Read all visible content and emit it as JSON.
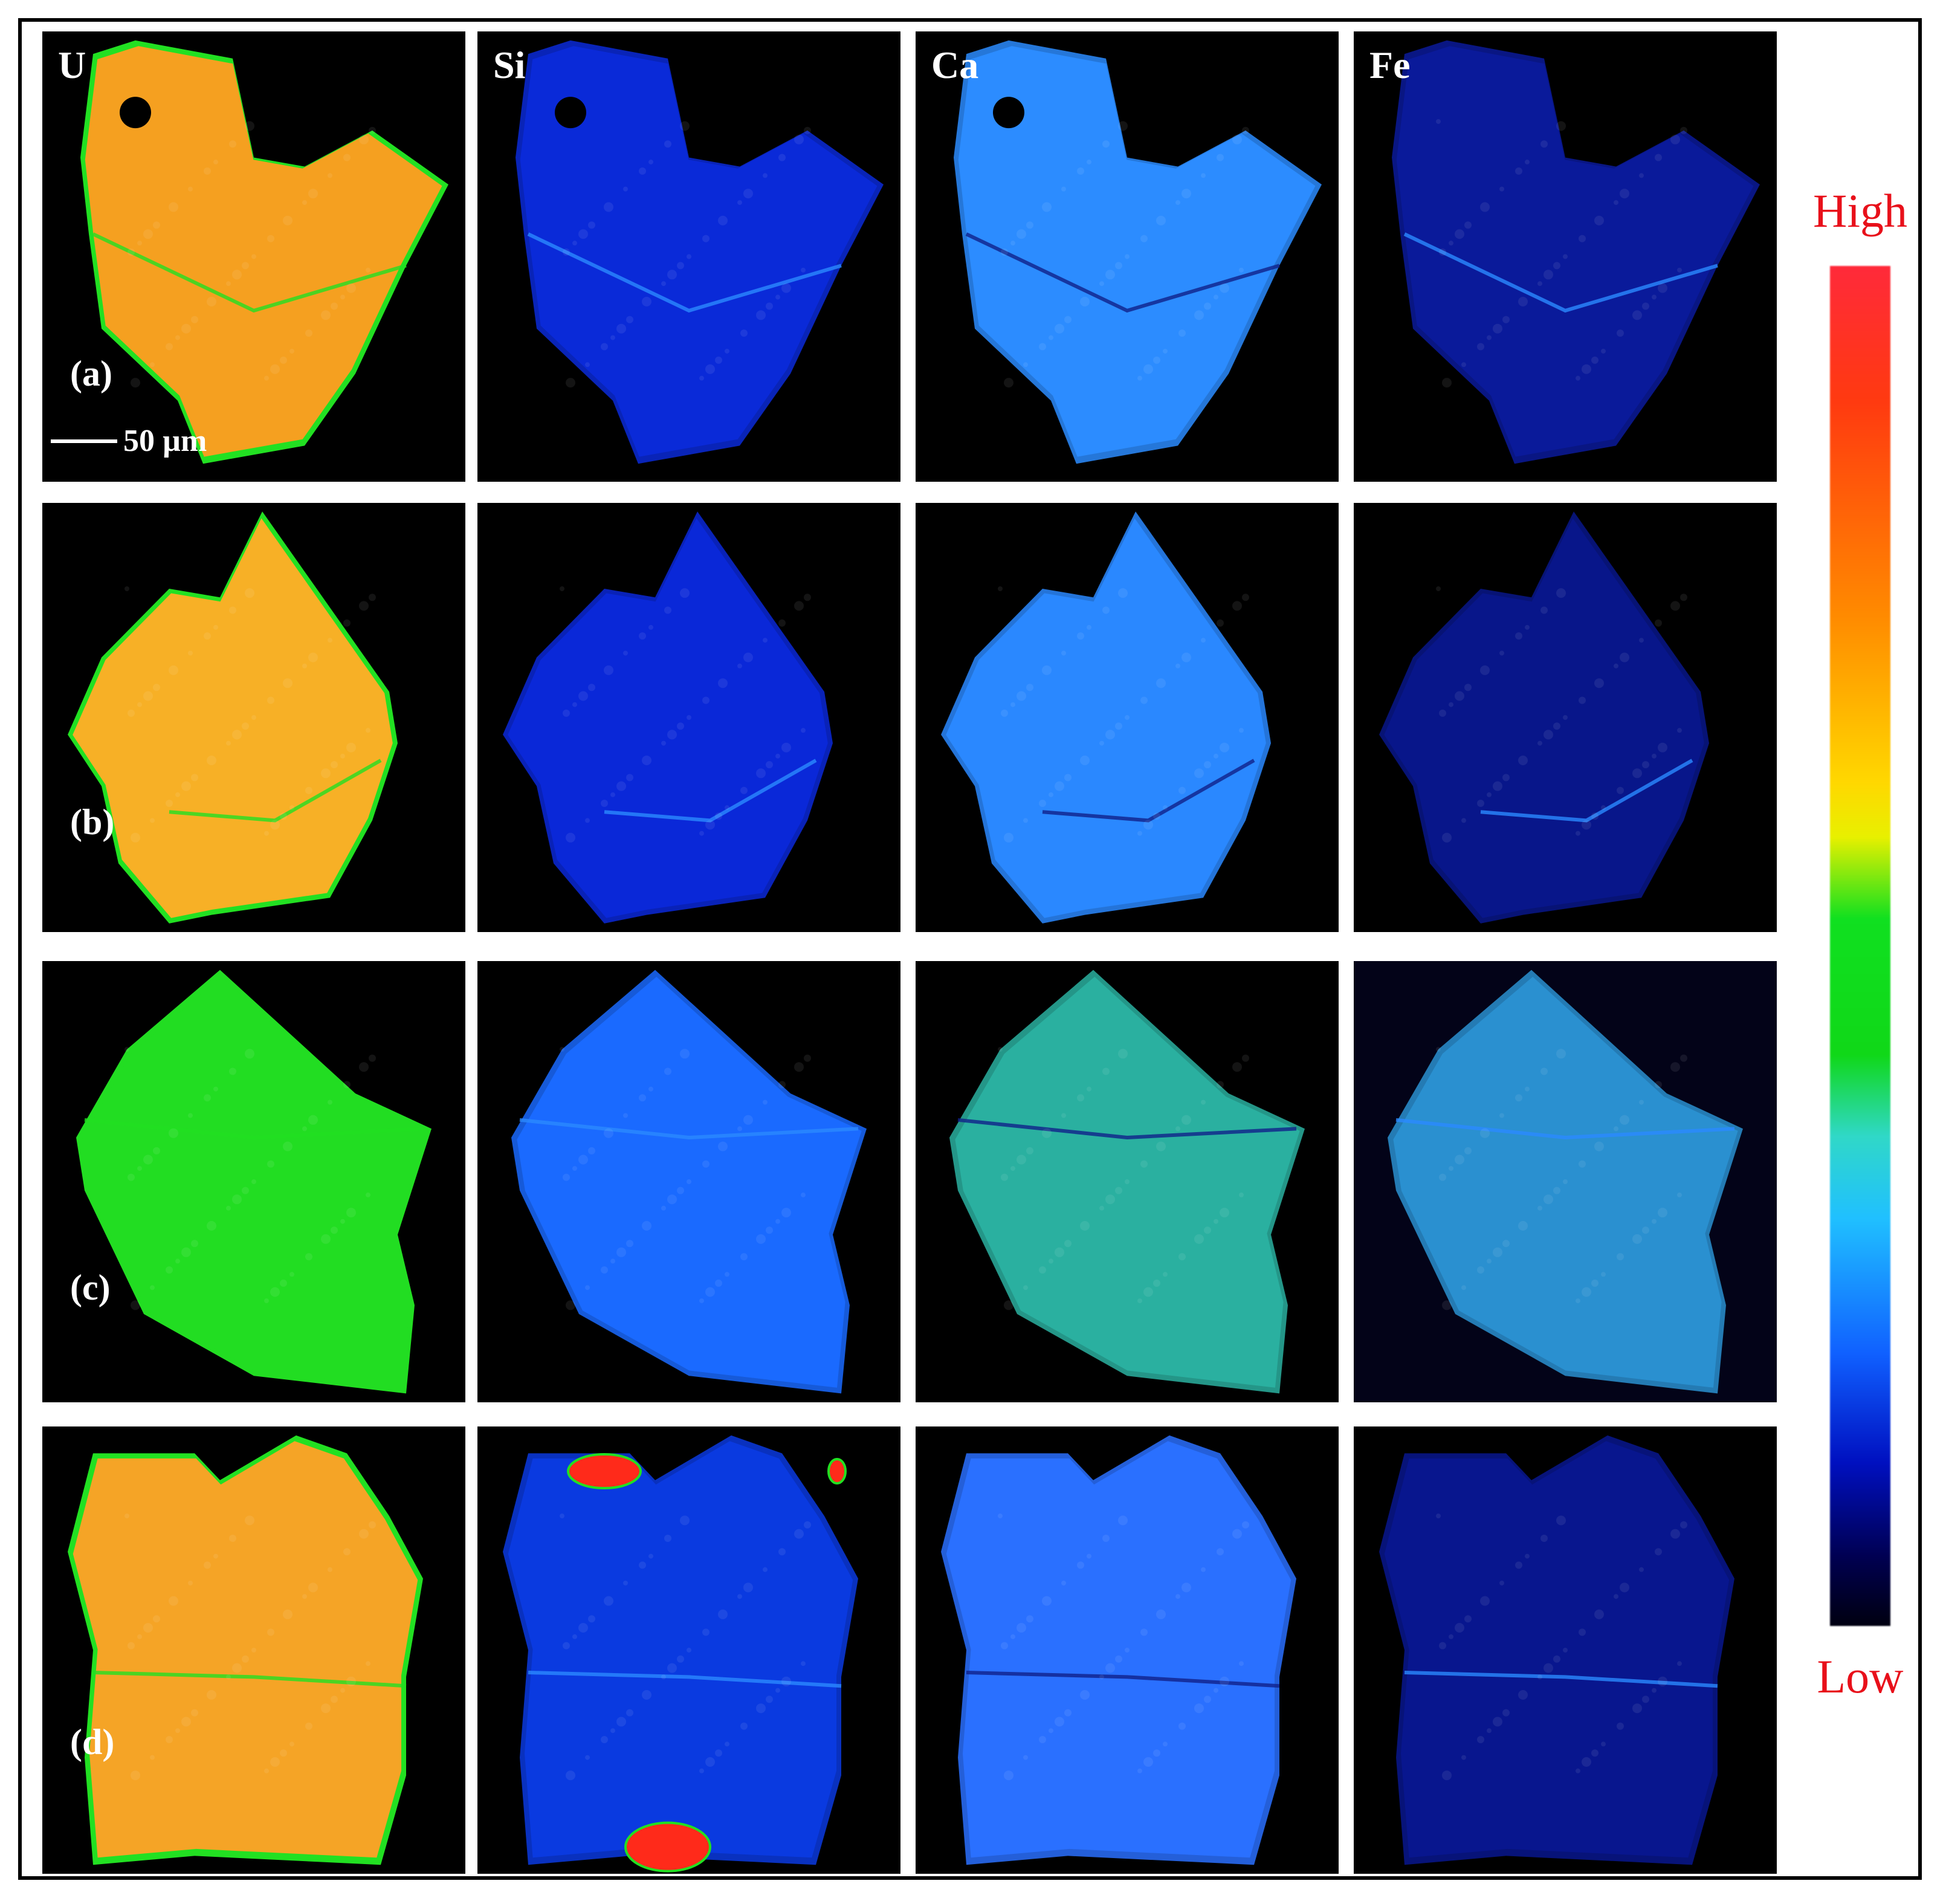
{
  "column_labels": [
    "U",
    "Si",
    "Ca",
    "Fe"
  ],
  "row_labels": [
    "(a)",
    "(b)",
    "(c)",
    "(d)"
  ],
  "scale_bar": {
    "label": "50 µm"
  },
  "colorbar": {
    "high_label": "High",
    "low_label": "Low",
    "label_color": "#e8101a"
  },
  "colors": {
    "U_a": "#f5a020",
    "U_b": "#f7b026",
    "U_c": "#22dd22",
    "U_d": "#f5a426",
    "Si_a": "#0a2ad8",
    "Si_b": "#0a28d8",
    "Si_c": "#1a6aff",
    "Si_d": "#0a3ae0",
    "Ca_a": "#2c8cff",
    "Ca_b": "#2a88ff",
    "Ca_c": "#2ab0a0",
    "Ca_d": "#2a70ff",
    "Fe_a": "#0a1a9a",
    "Fe_b": "#08168a",
    "Fe_c": "#2a90d0",
    "Fe_d": "#08168e",
    "edge_green": "#22e022",
    "crack_light": "#2a8aff",
    "crack_dark": "#10208a",
    "hotspot": "#ff2a1a"
  }
}
